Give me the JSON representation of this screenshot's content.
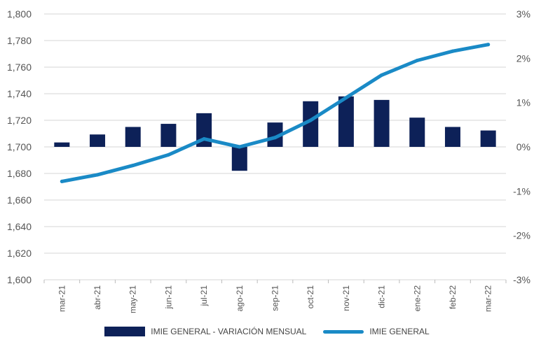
{
  "chart_data": {
    "type": "bar+line",
    "categories": [
      "mar-21",
      "abr-21",
      "may-21",
      "jun-21",
      "jul-21",
      "ago-21",
      "sep-21",
      "oct-21",
      "nov-21",
      "dic-21",
      "ene-22",
      "feb-22",
      "mar-22"
    ],
    "series": [
      {
        "name": "IMIE GENERAL - VARIACIÓN MENSUAL",
        "type": "bar",
        "axis": "right",
        "color": "#0d2158",
        "values": [
          0.1,
          0.28,
          0.45,
          0.52,
          0.76,
          -0.54,
          0.55,
          1.03,
          1.14,
          1.06,
          0.66,
          0.45,
          0.37
        ]
      },
      {
        "name": "IMIE GENERAL",
        "type": "line",
        "axis": "left",
        "color": "#1a8ac6",
        "values": [
          1674,
          1679,
          1686,
          1694,
          1706,
          1700,
          1707,
          1720,
          1737,
          1754,
          1765,
          1772,
          1777
        ]
      }
    ],
    "y_left": {
      "min": 1600,
      "max": 1800,
      "ticks": [
        "1,600",
        "1,620",
        "1,640",
        "1,660",
        "1,680",
        "1,700",
        "1,720",
        "1,740",
        "1,760",
        "1,780",
        "1,800"
      ]
    },
    "y_right": {
      "min": -3,
      "max": 3,
      "ticks": [
        "-3%",
        "-2%",
        "-1%",
        "0%",
        "1%",
        "2%",
        "3%"
      ]
    },
    "grid": true,
    "legend": "bottom"
  }
}
